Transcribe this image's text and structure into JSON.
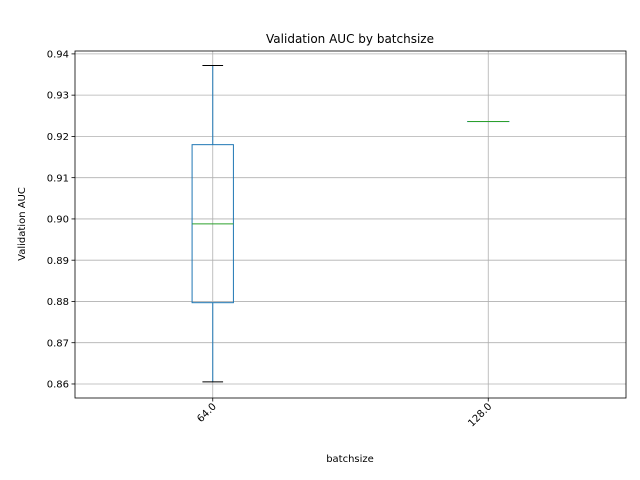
{
  "chart_data": {
    "type": "box",
    "title": "Validation AUC by batchsize",
    "xlabel": "batchsize",
    "ylabel": "Validation AUC",
    "categories": [
      "64.0",
      "128.0"
    ],
    "ylim": [
      0.8566,
      0.9407
    ],
    "yticks": [
      0.86,
      0.87,
      0.88,
      0.89,
      0.9,
      0.91,
      0.92,
      0.93,
      0.94
    ],
    "ytick_labels": [
      "0.86",
      "0.87",
      "0.88",
      "0.89",
      "0.90",
      "0.91",
      "0.92",
      "0.93",
      "0.94"
    ],
    "grid": true,
    "boxes": [
      {
        "category": "64.0",
        "whisker_low": 0.8605,
        "q1": 0.8797,
        "median": 0.8988,
        "q3": 0.918,
        "whisker_high": 0.9372
      },
      {
        "category": "128.0",
        "whisker_low": 0.9236,
        "q1": 0.9236,
        "median": 0.9236,
        "q3": 0.9236,
        "whisker_high": 0.9236
      }
    ],
    "colors": {
      "box": "#1f77b4",
      "median": "#2ca02c",
      "cap": "#000000",
      "grid": "#b0b0b0"
    }
  }
}
